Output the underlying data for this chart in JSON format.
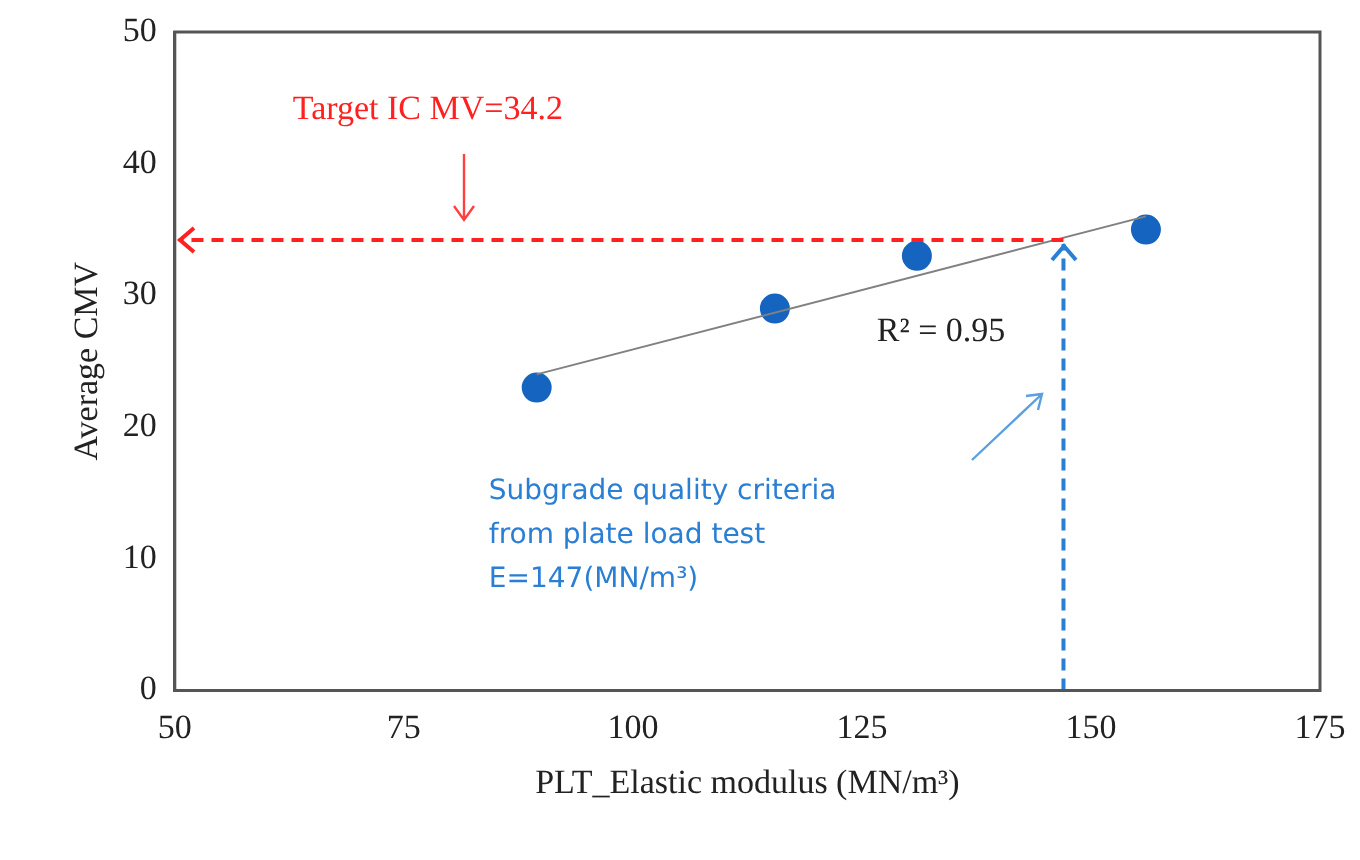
{
  "chart_data": {
    "type": "scatter",
    "xlabel": "PLT_Elastic modulus (MN/m³)",
    "ylabel": "Average CMV",
    "xlim": [
      50,
      175
    ],
    "xticks": [
      50,
      75,
      100,
      125,
      150,
      175
    ],
    "ylim": [
      0,
      50
    ],
    "yticks": [
      0,
      10,
      20,
      30,
      40,
      50
    ],
    "grid": false,
    "legend": false,
    "series": [
      {
        "marker": "circle",
        "color": "#1565c0",
        "x": [
          89.5,
          115.5,
          131,
          156
        ],
        "values": [
          23,
          29,
          33,
          35
        ]
      },
      {
        "type": "line",
        "color": "#808080",
        "x": [
          89.5,
          156
        ],
        "values": [
          24,
          36
        ]
      }
    ],
    "ref_lines": [
      {
        "axis": "y",
        "value": 34.2,
        "label": "Target IC MV=34.2",
        "color": "#ff2020",
        "line_style": "dashed"
      },
      {
        "axis": "x",
        "value": 147,
        "label": "Subgrade quality criteria\nfrom plate load test\nE=147(MN/m³)",
        "color": "#2a7fd4",
        "line_style": "dashed"
      }
    ],
    "annotations": [
      "R² = 0.95"
    ]
  }
}
